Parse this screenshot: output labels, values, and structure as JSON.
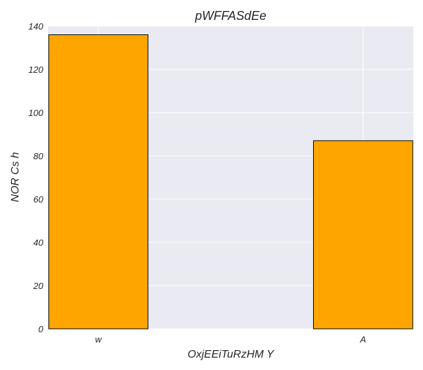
{
  "chart_data": {
    "type": "bar",
    "title": "pWFFASdEe",
    "xlabel": "OxjEEiTuRzHM Y",
    "ylabel": "NOR Cs h",
    "categories": [
      "w",
      "A"
    ],
    "values": [
      136,
      87
    ],
    "ylim": [
      0,
      140
    ],
    "yticks": [
      0,
      20,
      40,
      60,
      80,
      100,
      120,
      140
    ],
    "grid": true,
    "bar_color": "#ffa500",
    "bar_edge_color": "#000000",
    "background_color": "#eaeaf2"
  }
}
